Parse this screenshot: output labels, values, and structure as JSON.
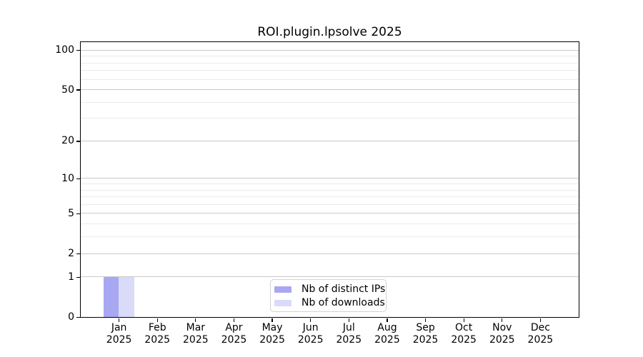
{
  "chart_data": {
    "type": "bar",
    "title": "ROI.plugin.lpsolve 2025",
    "categories": [
      "Jan",
      "Feb",
      "Mar",
      "Apr",
      "May",
      "Jun",
      "Jul",
      "Aug",
      "Sep",
      "Oct",
      "Nov",
      "Dec"
    ],
    "category_year": "2025",
    "series": [
      {
        "name": "Nb of distinct IPs",
        "color": "#a8a8f2",
        "values": [
          1,
          0,
          0,
          0,
          0,
          0,
          0,
          0,
          0,
          0,
          0,
          0
        ]
      },
      {
        "name": "Nb of downloads",
        "color": "#dadaf9",
        "values": [
          1,
          0,
          0,
          0,
          0,
          0,
          0,
          0,
          0,
          0,
          0,
          0
        ]
      }
    ],
    "xlabel": "",
    "ylabel": "",
    "y_axis": {
      "scale": "log1p",
      "tick_labels": [
        0,
        1,
        2,
        5,
        10,
        20,
        50,
        100
      ],
      "minor_gridlines": [
        3,
        4,
        6,
        7,
        8,
        9,
        30,
        40,
        60,
        70,
        80,
        90
      ],
      "ylim": [
        0,
        115
      ]
    },
    "legend": {
      "position": "bottom-center",
      "entries": [
        "Nb of distinct IPs",
        "Nb of downloads"
      ]
    },
    "grid": true
  },
  "colors": {
    "major_grid": "#c9c9c9",
    "minor_grid": "#ebebeb",
    "axis": "#000000",
    "background": "#ffffff",
    "legend_border": "#d3d3d3"
  }
}
